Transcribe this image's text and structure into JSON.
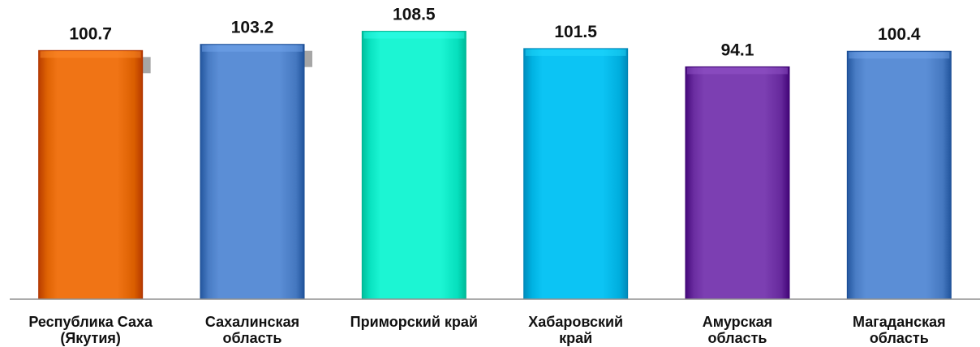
{
  "chart_data": {
    "type": "bar",
    "categories": [
      [
        "Республика Саха",
        "(Якутия)"
      ],
      [
        "Сахалинская",
        "область"
      ],
      [
        "Приморский край"
      ],
      [
        "Хабаровский",
        "край"
      ],
      [
        "Амурская",
        "область"
      ],
      [
        "Магаданская",
        "область"
      ]
    ],
    "values": [
      100.7,
      103.2,
      108.5,
      101.5,
      94.1,
      100.4
    ],
    "value_labels": [
      "100.7",
      "103.2",
      "108.5",
      "101.5",
      "94.1",
      "100.4"
    ],
    "colors": [
      "#f07415",
      "#5b8ed6",
      "#1cf5d3",
      "#0cc4f4",
      "#7c3fb2",
      "#5b8ed6"
    ],
    "title": "",
    "xlabel": "",
    "ylabel": "",
    "ylim": [
      0,
      110
    ],
    "grid": false,
    "legend": "none"
  }
}
